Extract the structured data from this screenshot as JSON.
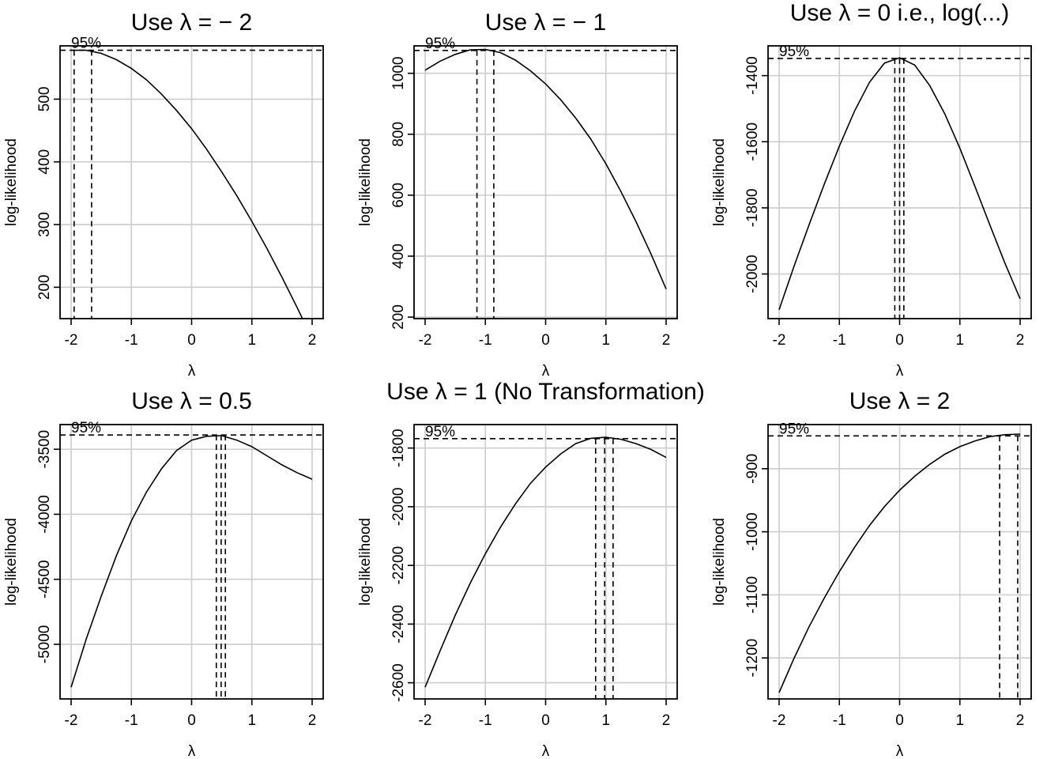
{
  "chart_data": [
    {
      "type": "line",
      "title": "Use λ = − 2",
      "xlabel": "λ",
      "ylabel": "log-likelihood",
      "ci_label": "95%",
      "xlim": [
        -2,
        2
      ],
      "ylim": [
        150,
        585
      ],
      "x_ticks": [
        -2,
        -1,
        0,
        1,
        2
      ],
      "y_ticks": [
        200,
        300,
        400,
        500
      ],
      "grid": true,
      "ci_level": 578,
      "ci_lines": [
        -1.95,
        -1.66
      ],
      "x": [
        -2,
        -1.75,
        -1.5,
        -1.25,
        -1,
        -0.75,
        -0.5,
        -0.25,
        0,
        0.25,
        0.5,
        0.75,
        1,
        1.25,
        1.5,
        1.75,
        2
      ],
      "y": [
        578,
        578,
        573,
        563,
        549,
        531,
        508,
        482,
        453,
        420,
        384,
        346,
        305,
        262,
        216,
        168,
        118
      ]
    },
    {
      "type": "line",
      "title": "Use λ = − 1",
      "xlabel": "λ",
      "ylabel": "log-likelihood",
      "ci_label": "95%",
      "xlim": [
        -2,
        2
      ],
      "ylim": [
        195,
        1090
      ],
      "x_ticks": [
        -2,
        -1,
        0,
        1,
        2
      ],
      "y_ticks": [
        200,
        400,
        600,
        800,
        1000
      ],
      "grid": true,
      "ci_level": 1075,
      "ci_lines": [
        -1.14,
        -0.86
      ],
      "x": [
        -2,
        -1.75,
        -1.5,
        -1.25,
        -1,
        -0.75,
        -0.5,
        -0.25,
        0,
        0.25,
        0.5,
        0.75,
        1,
        1.25,
        1.5,
        1.75,
        2
      ],
      "y": [
        1010,
        1040,
        1062,
        1077,
        1078,
        1068,
        1043,
        1008,
        965,
        913,
        853,
        784,
        703,
        612,
        513,
        407,
        292
      ]
    },
    {
      "type": "line",
      "title": "Use λ = 0 i.e., log(...)",
      "xlabel": "λ",
      "ylabel": "log-likelihood",
      "ci_label": "95%",
      "xlim": [
        -2,
        2
      ],
      "ylim": [
        -2135,
        -1310
      ],
      "x_ticks": [
        -2,
        -1,
        0,
        1,
        2
      ],
      "y_ticks": [
        -2000,
        -1800,
        -1600,
        -1400
      ],
      "grid": true,
      "ci_level": -1348,
      "ci_lines": [
        -0.08,
        0.0,
        0.07
      ],
      "x": [
        -2,
        -1.75,
        -1.5,
        -1.25,
        -1,
        -0.75,
        -0.5,
        -0.25,
        0,
        0.25,
        0.5,
        0.75,
        1,
        1.25,
        1.5,
        1.75,
        2
      ],
      "y": [
        -2108,
        -1975,
        -1850,
        -1728,
        -1613,
        -1508,
        -1420,
        -1362,
        -1346,
        -1368,
        -1430,
        -1516,
        -1620,
        -1735,
        -1853,
        -1968,
        -2075
      ]
    },
    {
      "type": "line",
      "title": "Use λ = 0.5",
      "xlabel": "λ",
      "ylabel": "log-likelihood",
      "ci_label": "95%",
      "xlim": [
        -2,
        2
      ],
      "ylim": [
        -5420,
        -3310
      ],
      "x_ticks": [
        -2,
        -1,
        0,
        1,
        2
      ],
      "y_ticks": [
        -5000,
        -4500,
        -4000,
        -3500
      ],
      "grid": true,
      "ci_level": -3390,
      "ci_lines": [
        0.41,
        0.49,
        0.56
      ],
      "x": [
        -2,
        -1.75,
        -1.5,
        -1.25,
        -1,
        -0.75,
        -0.5,
        -0.25,
        0,
        0.25,
        0.5,
        0.75,
        1,
        1.25,
        1.5,
        1.75,
        2
      ],
      "y": [
        -5330,
        -4960,
        -4630,
        -4320,
        -4050,
        -3830,
        -3650,
        -3510,
        -3430,
        -3400,
        -3395,
        -3430,
        -3480,
        -3550,
        -3620,
        -3680,
        -3730
      ]
    },
    {
      "type": "line",
      "title": "Use λ = 1 (No Transformation)",
      "xlabel": "λ",
      "ylabel": "log-likelihood",
      "ci_label": "95%",
      "xlim": [
        -2,
        2
      ],
      "ylim": [
        -2655,
        -1720
      ],
      "x_ticks": [
        -2,
        -1,
        0,
        1,
        2
      ],
      "y_ticks": [
        -2600,
        -2400,
        -2200,
        -2000,
        -1800
      ],
      "grid": true,
      "ci_level": -1768,
      "ci_lines": [
        0.83,
        0.98,
        1.12
      ],
      "x": [
        -2,
        -1.75,
        -1.5,
        -1.25,
        -1,
        -0.75,
        -0.5,
        -0.25,
        0,
        0.25,
        0.5,
        0.75,
        1,
        1.25,
        1.5,
        1.75,
        2
      ],
      "y": [
        -2615,
        -2490,
        -2370,
        -2260,
        -2160,
        -2070,
        -1990,
        -1920,
        -1865,
        -1820,
        -1785,
        -1767,
        -1763,
        -1770,
        -1785,
        -1805,
        -1832
      ]
    },
    {
      "type": "line",
      "title": "Use λ = 2",
      "xlabel": "λ",
      "ylabel": "log-likelihood",
      "ci_label": "95%",
      "xlim": [
        -2,
        2
      ],
      "ylim": [
        -1265,
        -830
      ],
      "x_ticks": [
        -2,
        -1,
        0,
        1,
        2
      ],
      "y_ticks": [
        -1200,
        -1100,
        -1000,
        -900
      ],
      "grid": true,
      "ci_level": -848,
      "ci_lines": [
        1.66,
        1.96
      ],
      "x": [
        -2,
        -1.75,
        -1.5,
        -1.25,
        -1,
        -0.75,
        -0.5,
        -0.25,
        0,
        0.25,
        0.5,
        0.75,
        1,
        1.25,
        1.5,
        1.75,
        2
      ],
      "y": [
        -1255,
        -1200,
        -1150,
        -1105,
        -1063,
        -1025,
        -990,
        -960,
        -934,
        -912,
        -893,
        -877,
        -865,
        -856,
        -849,
        -846,
        -845
      ]
    }
  ]
}
